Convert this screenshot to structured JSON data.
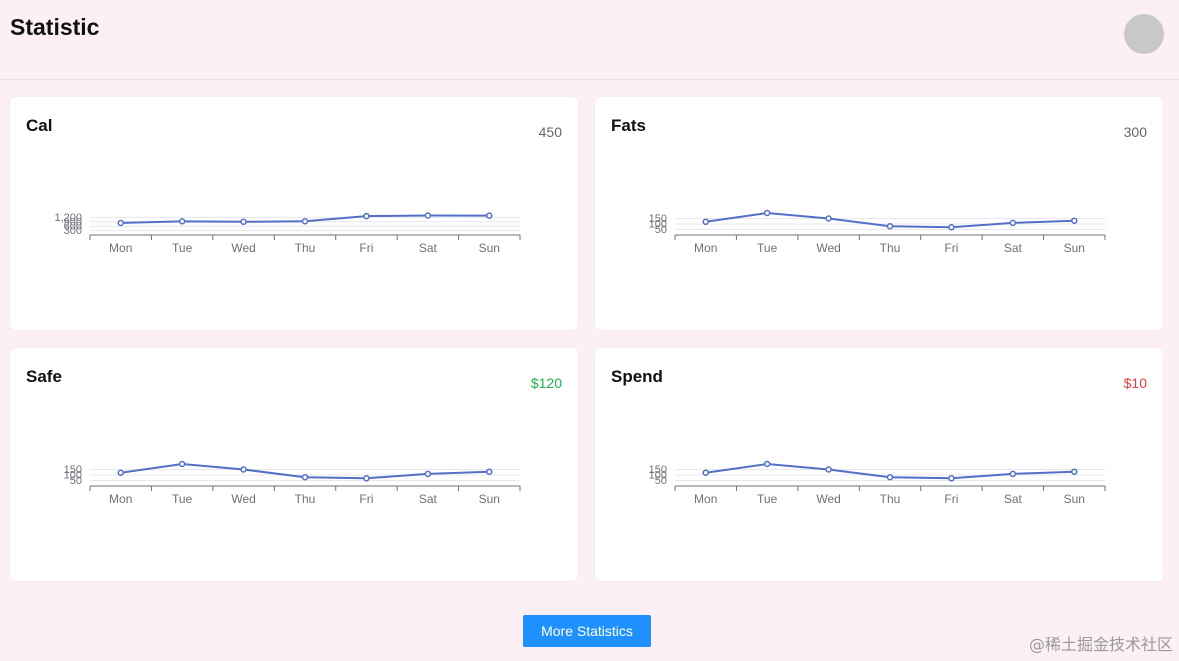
{
  "header": {
    "title": "Statistic"
  },
  "cards": [
    {
      "title": "Cal",
      "value": "450",
      "value_status": "neutral",
      "chart_data": {
        "type": "line",
        "categories": [
          "Mon",
          "Tue",
          "Wed",
          "Thu",
          "Fri",
          "Sat",
          "Sun"
        ],
        "series": [
          {
            "values": [
              820,
              932,
              901,
              934,
              1290,
              1330,
              1320
            ]
          }
        ],
        "yticks": [
          "300",
          "600",
          "900",
          "1,200"
        ],
        "ylim": [
          0,
          1500
        ],
        "grid": true
      }
    },
    {
      "title": "Fats",
      "value": "300",
      "value_status": "neutral",
      "chart_data": {
        "type": "line",
        "categories": [
          "Mon",
          "Tue",
          "Wed",
          "Thu",
          "Fri",
          "Sat",
          "Sun"
        ],
        "series": [
          {
            "values": [
              120,
              200,
              150,
              80,
              70,
              110,
              130
            ]
          }
        ],
        "yticks": [
          "50",
          "100",
          "150"
        ],
        "ylim": [
          0,
          200
        ],
        "grid": true
      }
    },
    {
      "title": "Safe",
      "value": "$120",
      "value_status": "positive",
      "chart_data": {
        "type": "line",
        "categories": [
          "Mon",
          "Tue",
          "Wed",
          "Thu",
          "Fri",
          "Sat",
          "Sun"
        ],
        "series": [
          {
            "values": [
              120,
              200,
              150,
              80,
              70,
              110,
              130
            ]
          }
        ],
        "yticks": [
          "50",
          "100",
          "150"
        ],
        "ylim": [
          0,
          200
        ],
        "grid": true
      }
    },
    {
      "title": "Spend",
      "value": "$10",
      "value_status": "negative",
      "chart_data": {
        "type": "line",
        "categories": [
          "Mon",
          "Tue",
          "Wed",
          "Thu",
          "Fri",
          "Sat",
          "Sun"
        ],
        "series": [
          {
            "values": [
              120,
              200,
              150,
              80,
              70,
              110,
              130
            ]
          }
        ],
        "yticks": [
          "50",
          "100",
          "150"
        ],
        "ylim": [
          0,
          200
        ],
        "grid": true
      }
    }
  ],
  "more_button_label": "More Statistics",
  "watermark": "@稀土掘金技术社区",
  "colors": {
    "line": "#5470c6",
    "accent": "#1e90ff",
    "positive": "#1bb34d",
    "negative": "#e53e3e"
  }
}
